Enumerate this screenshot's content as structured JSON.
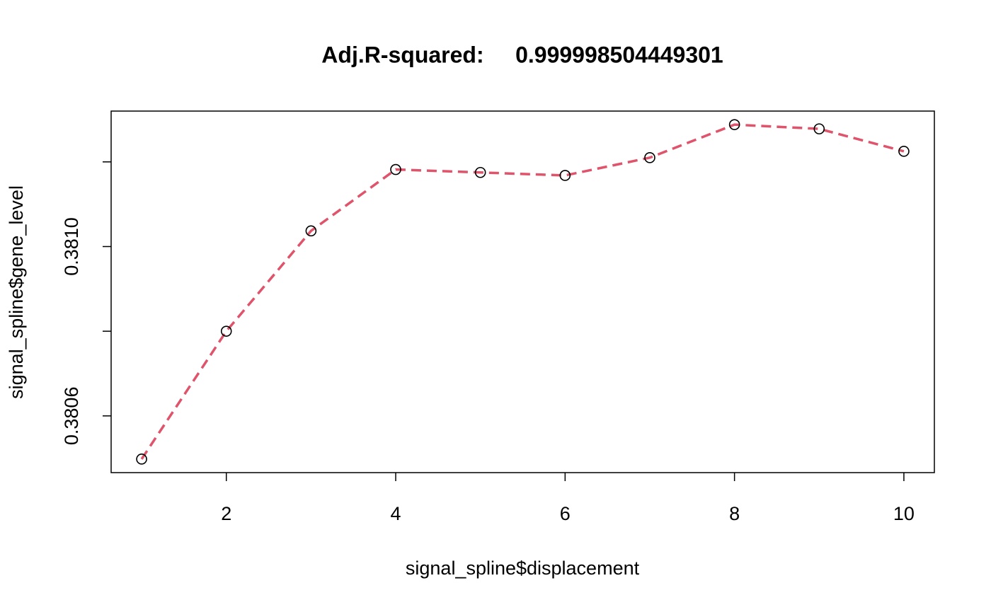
{
  "chart_data": {
    "type": "line",
    "title": "Adj.R-squared:     0.999998504449301",
    "x_label": "signal_spline$displacement",
    "y_label": "signal_spline$gene_level",
    "x": [
      1,
      2,
      3,
      4,
      5,
      6,
      7,
      8,
      9,
      10
    ],
    "series": [
      {
        "color": "#DF536B",
        "values": [
          0.380498,
          0.3808,
          0.381037,
          0.381182,
          0.381175,
          0.381168,
          0.38121,
          0.381288,
          0.381278,
          0.381225
        ]
      }
    ],
    "xlim": [
      0.64,
      10.36
    ],
    "xticks": [
      2,
      4,
      6,
      8,
      10
    ],
    "ylim": [
      0.380466,
      0.38132
    ],
    "yticks": [
      0.3806,
      {
        "value": 0.3808,
        "label": null
      },
      {
        "value": 0.381,
        "label": "0.3810"
      },
      {
        "value": 0.3812,
        "label": null
      }
    ]
  }
}
